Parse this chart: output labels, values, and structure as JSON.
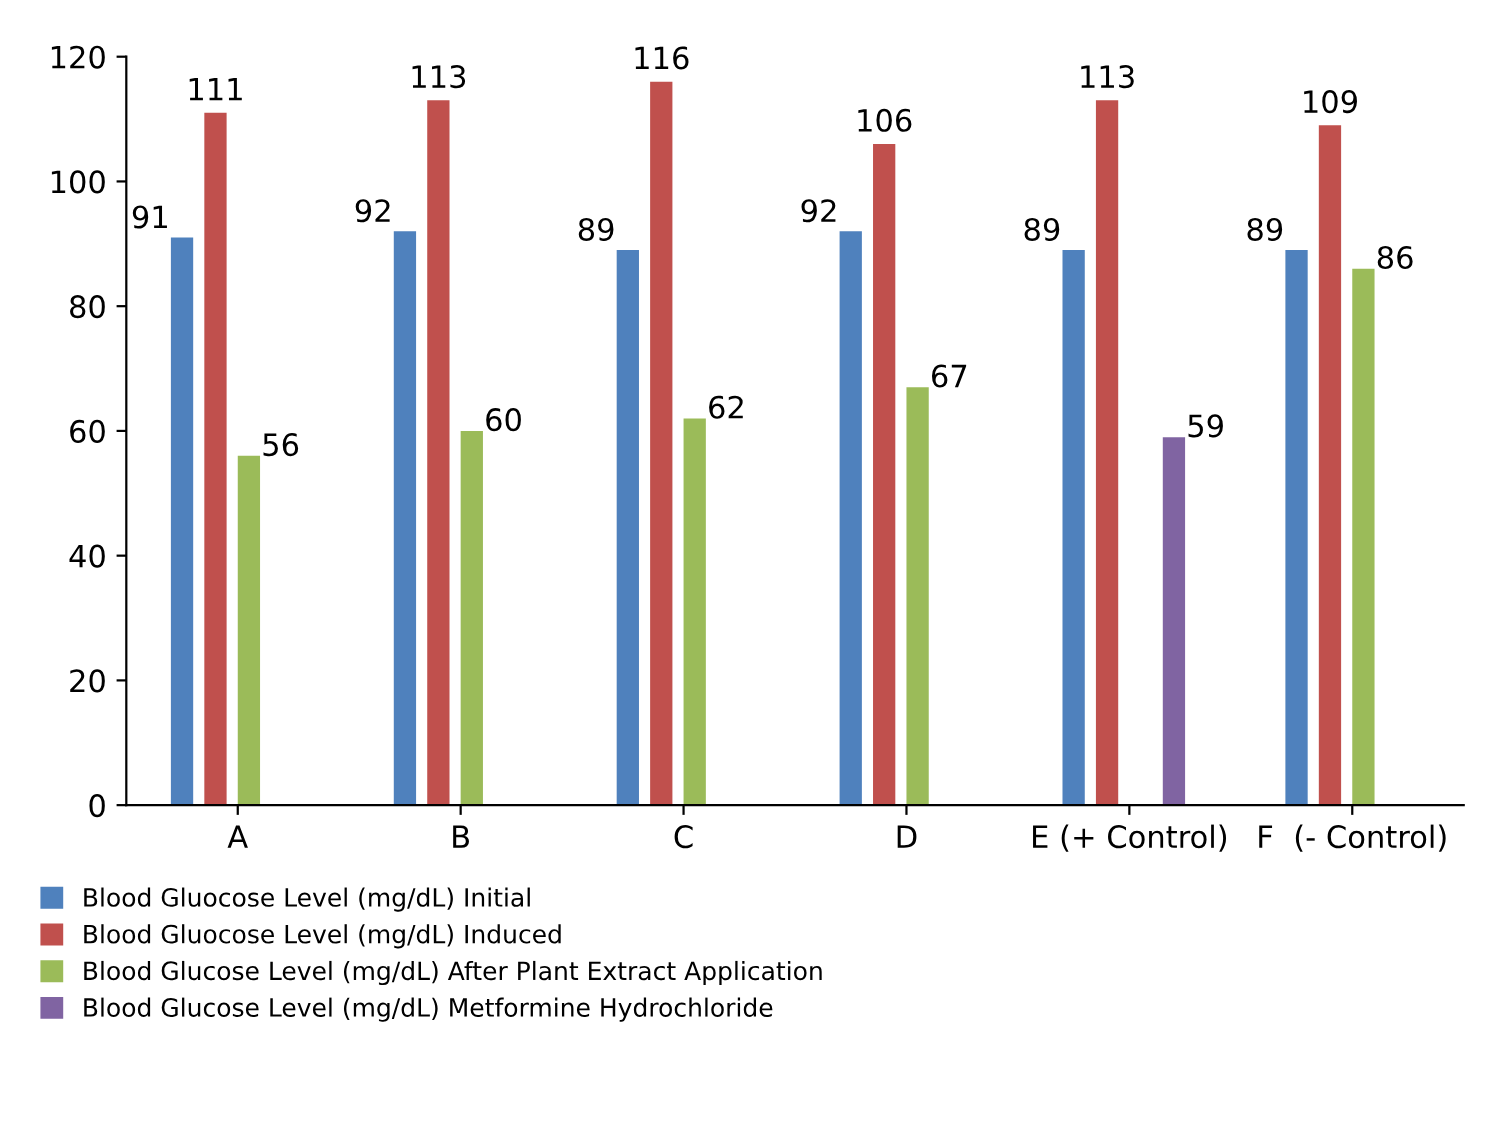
{
  "chart_data": {
    "type": "bar",
    "categories": [
      "A",
      "B",
      "C",
      "D",
      "E (+ Control)",
      "F  (- Control)"
    ],
    "series": [
      {
        "name": "Blood Gluocose Level (mg/dL) Initial",
        "color": "#4f81bd",
        "values": [
          91,
          92,
          89,
          92,
          89,
          89
        ]
      },
      {
        "name": "Blood Gluocose Level (mg/dL) Induced",
        "color": "#c0504d",
        "values": [
          111,
          113,
          116,
          106,
          113,
          109
        ]
      },
      {
        "name": "Blood Glucose Level (mg/dL) After Plant Extract Application",
        "color": "#9bbb59",
        "values": [
          56,
          60,
          62,
          67,
          null,
          86
        ]
      },
      {
        "name": "Blood Glucose Level (mg/dL) Metformine Hydrochloride",
        "color": "#8064a2",
        "values": [
          null,
          null,
          null,
          null,
          59,
          null
        ]
      }
    ],
    "ylim": [
      0,
      120
    ],
    "yticks": [
      0,
      20,
      40,
      60,
      80,
      100,
      120
    ],
    "grid": false,
    "legend": "bottom",
    "data_labels": true
  }
}
